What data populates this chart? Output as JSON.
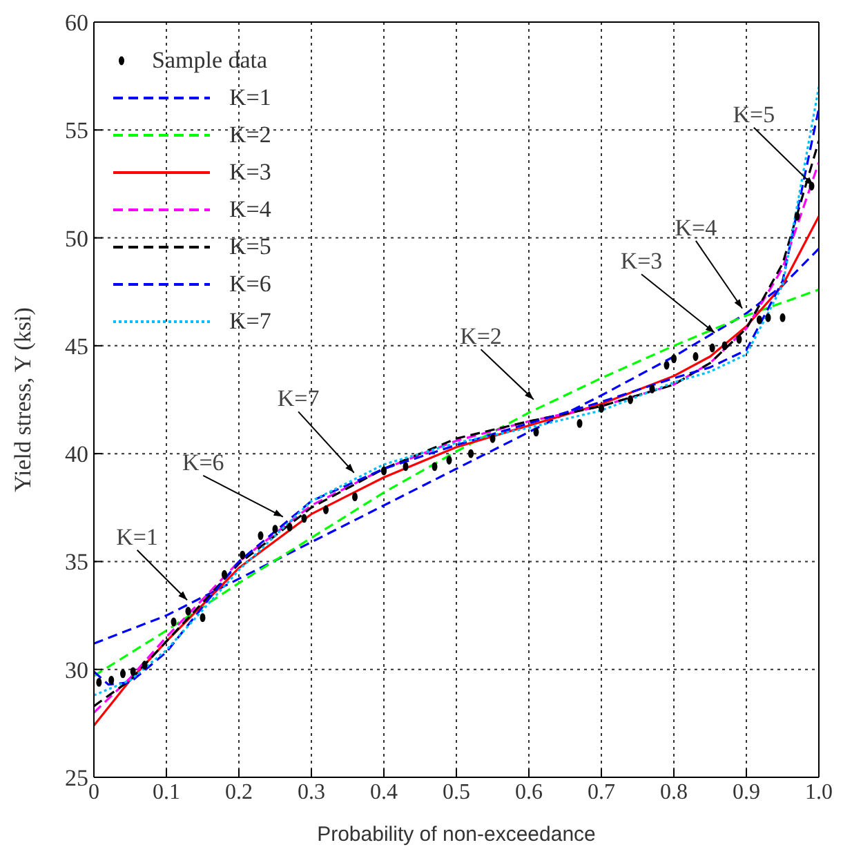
{
  "chart_data": {
    "type": "line",
    "xlabel": "Probability of non-exceedance",
    "ylabel": "Yield stress, Y (ksi)",
    "xlim": [
      0,
      1
    ],
    "ylim": [
      25,
      60
    ],
    "xticks": [
      0,
      0.1,
      0.2,
      0.3,
      0.4,
      0.5,
      0.6,
      0.7,
      0.8,
      0.9,
      {
        "value": 1,
        "label": "1.0"
      }
    ],
    "yticks": [
      25,
      30,
      35,
      40,
      45,
      50,
      55,
      60
    ],
    "grid": true,
    "legend": "top left",
    "series": [
      {
        "name": "Sample data",
        "type": "scatter",
        "marker": "circle",
        "color": "#000000",
        "x": [
          0.007,
          0.024,
          0.04,
          0.054,
          0.07,
          0.11,
          0.13,
          0.15,
          0.18,
          0.205,
          0.23,
          0.25,
          0.27,
          0.29,
          0.32,
          0.36,
          0.4,
          0.43,
          0.47,
          0.49,
          0.52,
          0.55,
          0.61,
          0.67,
          0.7,
          0.74,
          0.77,
          0.79,
          0.8,
          0.83,
          0.853,
          0.87,
          0.89,
          0.918,
          0.93,
          0.95,
          0.97,
          0.99
        ],
        "values": [
          29.4,
          29.5,
          29.8,
          29.9,
          30.2,
          32.2,
          32.7,
          32.4,
          34.4,
          35.3,
          36.2,
          36.5,
          36.6,
          37,
          37.4,
          38,
          39.2,
          39.4,
          39.4,
          39.7,
          40,
          40.7,
          41,
          41.4,
          42.1,
          42.5,
          43,
          44.1,
          44.4,
          44.5,
          44.9,
          45,
          45.3,
          46.2,
          46.3,
          46.3,
          51,
          52.4
        ]
      },
      {
        "name": "K=1",
        "color": "#0000ff",
        "line_style": "dashed",
        "x": [
          0,
          0.1,
          0.2,
          0.3,
          0.4,
          0.5,
          0.6,
          0.7,
          0.8,
          0.9,
          0.95,
          1
        ],
        "values": [
          31.2,
          32.5,
          34.2,
          35.9,
          37.6,
          39.3,
          41,
          42.7,
          44.5,
          46.5,
          47.8,
          49.5
        ]
      },
      {
        "name": "K=2",
        "color": "#00ff00",
        "line_style": "dashed",
        "x": [
          0,
          0.1,
          0.2,
          0.3,
          0.4,
          0.5,
          0.6,
          0.7,
          0.8,
          0.9,
          1
        ],
        "values": [
          29.7,
          31.8,
          34,
          36.1,
          38.2,
          40.1,
          41.9,
          43.5,
          45,
          46.4,
          47.6
        ]
      },
      {
        "name": "K=3",
        "color": "#ff0000",
        "line_style": "solid",
        "x": [
          0,
          0.05,
          0.1,
          0.2,
          0.3,
          0.4,
          0.5,
          0.6,
          0.7,
          0.8,
          0.85,
          0.9,
          0.95,
          1
        ],
        "values": [
          27.4,
          29.5,
          31.3,
          34.7,
          37.2,
          38.9,
          40.3,
          41.3,
          42.3,
          43.6,
          44.5,
          45.9,
          47.8,
          51
        ]
      },
      {
        "name": "K=4",
        "color": "#ff00ff",
        "line_style": "dashed",
        "x": [
          0,
          0.05,
          0.1,
          0.2,
          0.3,
          0.4,
          0.5,
          0.6,
          0.7,
          0.8,
          0.85,
          0.9,
          0.95,
          1
        ],
        "values": [
          28,
          29.6,
          31.5,
          35,
          37.6,
          39.3,
          40.6,
          41.5,
          42.2,
          43.2,
          44.2,
          45.8,
          48.6,
          53.5
        ]
      },
      {
        "name": "K=5",
        "color": "#000000",
        "line_style": "dashed",
        "x": [
          0,
          0.05,
          0.1,
          0.2,
          0.3,
          0.4,
          0.5,
          0.6,
          0.7,
          0.8,
          0.85,
          0.9,
          0.95,
          1
        ],
        "values": [
          28.3,
          29.5,
          31.3,
          34.9,
          37.5,
          39.3,
          40.7,
          41.5,
          42.2,
          43.2,
          44.2,
          45.8,
          48.8,
          54.5
        ]
      },
      {
        "name": "K=6",
        "color": "#0000ff",
        "line_style": "dashed",
        "x": [
          0,
          0.02,
          0.05,
          0.1,
          0.2,
          0.3,
          0.4,
          0.5,
          0.6,
          0.7,
          0.8,
          0.85,
          0.9,
          0.95,
          1
        ],
        "values": [
          29.9,
          29.3,
          29.4,
          30.8,
          35,
          37.8,
          39.3,
          40.4,
          41.4,
          42.4,
          43.5,
          44,
          44.8,
          48,
          56
        ]
      },
      {
        "name": "K=7",
        "color": "#00bfff",
        "line_style": "dotted",
        "x": [
          0,
          0.05,
          0.1,
          0.2,
          0.3,
          0.4,
          0.5,
          0.6,
          0.7,
          0.8,
          0.85,
          0.9,
          0.95,
          1
        ],
        "values": [
          28.8,
          29.5,
          30.9,
          34.6,
          37.8,
          39.5,
          40.5,
          41.2,
          42,
          43.3,
          43.8,
          44.6,
          47.8,
          57
        ]
      }
    ],
    "annotations": [
      {
        "text": "K=1",
        "x": 0.132,
        "y": 33.1
      },
      {
        "text": "K=6",
        "x": 0.265,
        "y": 37
      },
      {
        "text": "K=7",
        "x": 0.362,
        "y": 39
      },
      {
        "text": "K=2",
        "x": 0.61,
        "y": 42.4
      },
      {
        "text": "K=3",
        "x": 0.86,
        "y": 45.5
      },
      {
        "text": "K=4",
        "x": 0.897,
        "y": 46.6
      },
      {
        "text": "K=5",
        "x": 0.996,
        "y": 52.3
      }
    ]
  }
}
